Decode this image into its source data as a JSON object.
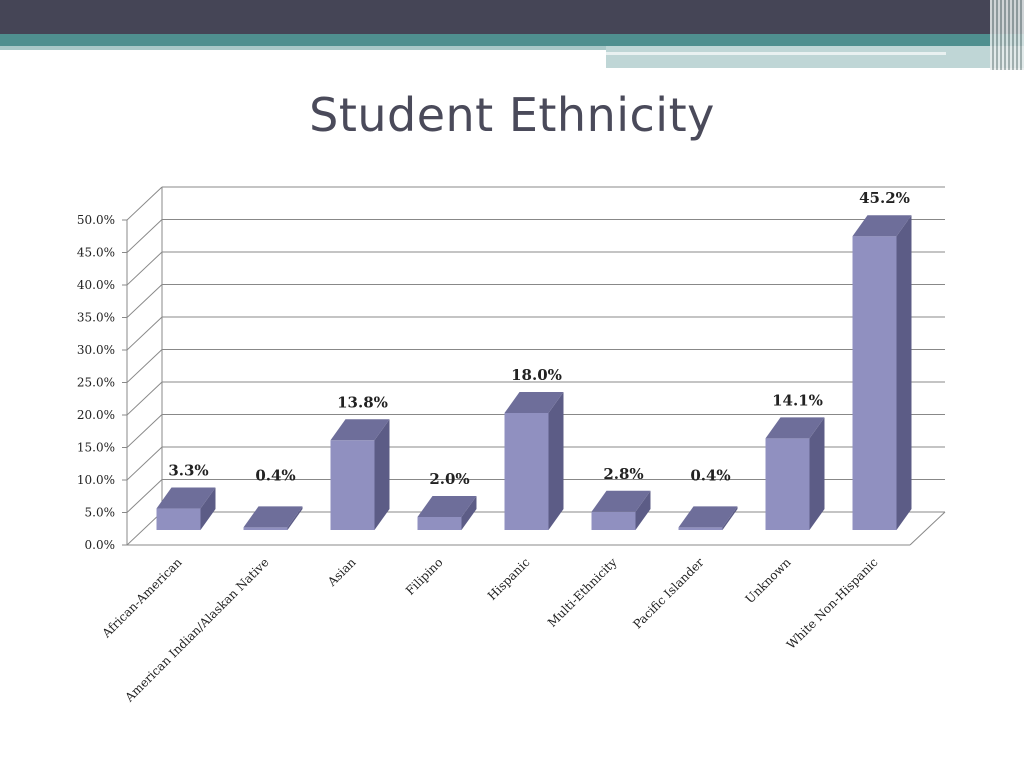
{
  "slide": {
    "title": "Student Ethnicity"
  },
  "colors": {
    "bar_front": "#9090c0",
    "bar_top": "#6e6e9a",
    "bar_side": "#5c5c86",
    "grid": "#888888"
  },
  "chart_data": {
    "type": "bar",
    "title": "Student Ethnicity",
    "xlabel": "",
    "ylabel": "",
    "ylim": [
      0,
      50
    ],
    "yticks": [
      "0.0%",
      "5.0%",
      "10.0%",
      "15.0%",
      "20.0%",
      "25.0%",
      "30.0%",
      "35.0%",
      "40.0%",
      "45.0%",
      "50.0%"
    ],
    "categories": [
      "African-American",
      "American Indian/Alaskan Native",
      "Asian",
      "Filipino",
      "Hispanic",
      "Multi-Ethnicity",
      "Pacific Islander",
      "Unknown",
      "White Non-Hispanic"
    ],
    "values": [
      3.3,
      0.4,
      13.8,
      2.0,
      18.0,
      2.8,
      0.4,
      14.1,
      45.2
    ],
    "data_labels": [
      "3.3%",
      "0.4%",
      "13.8%",
      "2.0%",
      "18.0%",
      "2.8%",
      "0.4%",
      "14.1%",
      "45.2%"
    ],
    "style": "3d-column",
    "grid": true,
    "legend": "none"
  }
}
